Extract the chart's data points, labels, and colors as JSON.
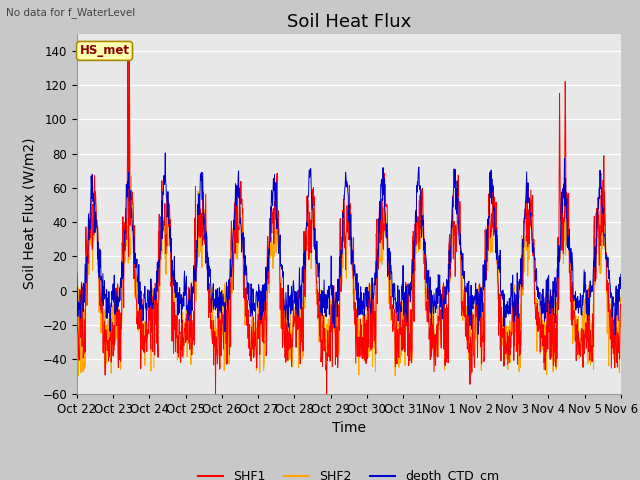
{
  "title": "Soil Heat Flux",
  "ylabel": "Soil Heat Flux (W/m2)",
  "xlabel": "Time",
  "top_left_text": "No data for f_WaterLevel",
  "legend_label_text": "HS_met",
  "ylim": [
    -60,
    150
  ],
  "yticks": [
    -60,
    -40,
    -20,
    0,
    20,
    40,
    60,
    80,
    100,
    120,
    140
  ],
  "xtick_labels": [
    "Oct 22",
    "Oct 23",
    "Oct 24",
    "Oct 25",
    "Oct 26",
    "Oct 27",
    "Oct 28",
    "Oct 29",
    "Oct 30",
    "Oct 31",
    "Nov 1",
    "Nov 2",
    "Nov 3",
    "Nov 4",
    "Nov 5",
    "Nov 6"
  ],
  "series_colors": {
    "SHF1": "#ff0000",
    "SHF2": "#ffa500",
    "depth_CTD_cm": "#0000cd"
  },
  "fig_bg": "#c8c8c8",
  "plot_bg": "#e8e8e8",
  "title_fontsize": 13,
  "axis_label_fontsize": 10,
  "tick_fontsize": 8.5
}
